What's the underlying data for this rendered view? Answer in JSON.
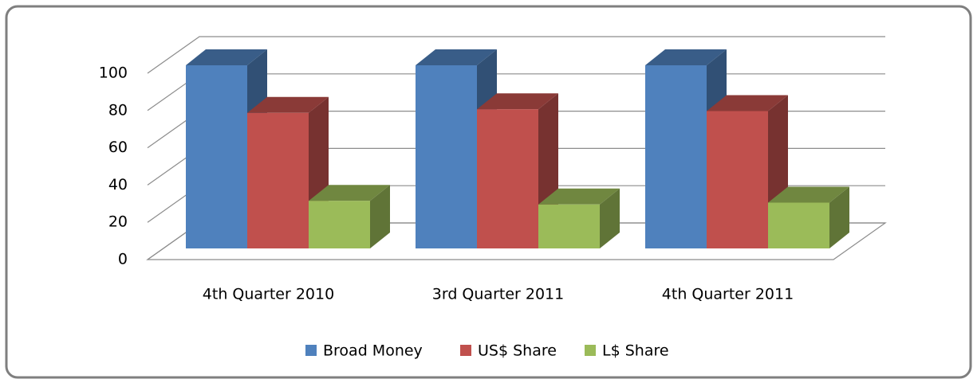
{
  "chart_data": {
    "type": "bar3d",
    "categories": [
      "4th Quarter 2010",
      "3rd Quarter 2011",
      "4th  Quarter 2011"
    ],
    "series": [
      {
        "name": "Broad Money",
        "color": "#4f81bd",
        "values": [
          100,
          100,
          100
        ]
      },
      {
        "name": "US$ Share",
        "color": "#c0504d",
        "values": [
          74,
          76,
          75
        ]
      },
      {
        "name": "L$ Share",
        "color": "#9bbb59",
        "values": [
          26,
          24,
          25
        ]
      }
    ],
    "ylim": [
      0,
      100
    ],
    "yticks": [
      0,
      20,
      40,
      60,
      80,
      100
    ],
    "grid": true,
    "legend": "bottom"
  }
}
